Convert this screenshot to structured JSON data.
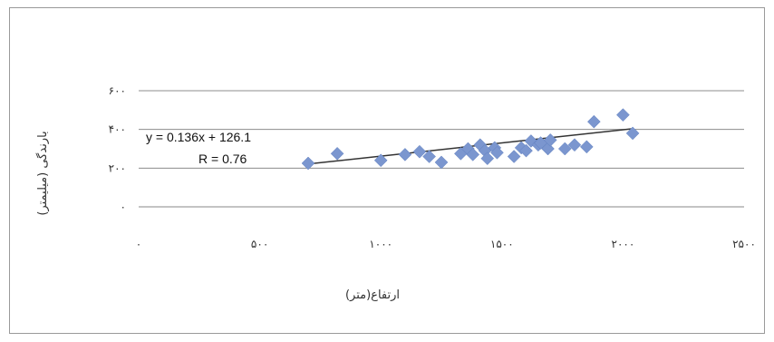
{
  "chart_data": {
    "type": "scatter",
    "xlabel": "ارتفاع(متر)",
    "ylabel": "بارندگی (میلیمتر)",
    "x_ticks": [
      "۰",
      "۵۰۰",
      "۱۰۰۰",
      "۱۵۰۰",
      "۲۰۰۰",
      "۲۵۰۰"
    ],
    "y_ticks": [
      "۰",
      "۲۰۰",
      "۴۰۰",
      "۶۰۰"
    ],
    "xlim": [
      0,
      2500
    ],
    "ylim": [
      0,
      600
    ],
    "grid": "horizontal",
    "point_color": "#7b96cf",
    "line_color": "#333333",
    "points": [
      {
        "x": 700,
        "y": 225
      },
      {
        "x": 820,
        "y": 275
      },
      {
        "x": 1000,
        "y": 240
      },
      {
        "x": 1100,
        "y": 270
      },
      {
        "x": 1160,
        "y": 285
      },
      {
        "x": 1200,
        "y": 260
      },
      {
        "x": 1250,
        "y": 230
      },
      {
        "x": 1330,
        "y": 275
      },
      {
        "x": 1360,
        "y": 300
      },
      {
        "x": 1380,
        "y": 270
      },
      {
        "x": 1410,
        "y": 320
      },
      {
        "x": 1430,
        "y": 290
      },
      {
        "x": 1440,
        "y": 250
      },
      {
        "x": 1470,
        "y": 305
      },
      {
        "x": 1480,
        "y": 280
      },
      {
        "x": 1550,
        "y": 260
      },
      {
        "x": 1580,
        "y": 305
      },
      {
        "x": 1600,
        "y": 290
      },
      {
        "x": 1620,
        "y": 340
      },
      {
        "x": 1650,
        "y": 320
      },
      {
        "x": 1660,
        "y": 330
      },
      {
        "x": 1690,
        "y": 300
      },
      {
        "x": 1700,
        "y": 345
      },
      {
        "x": 1760,
        "y": 300
      },
      {
        "x": 1800,
        "y": 320
      },
      {
        "x": 1850,
        "y": 310
      },
      {
        "x": 1880,
        "y": 440
      },
      {
        "x": 2000,
        "y": 475
      },
      {
        "x": 2040,
        "y": 380
      }
    ],
    "trendline": {
      "slope": 0.136,
      "intercept": 126.1,
      "x_start": 700,
      "x_end": 2040
    },
    "equation": "y = 0.136x + 126.1",
    "r_label": "R = 0.76"
  }
}
